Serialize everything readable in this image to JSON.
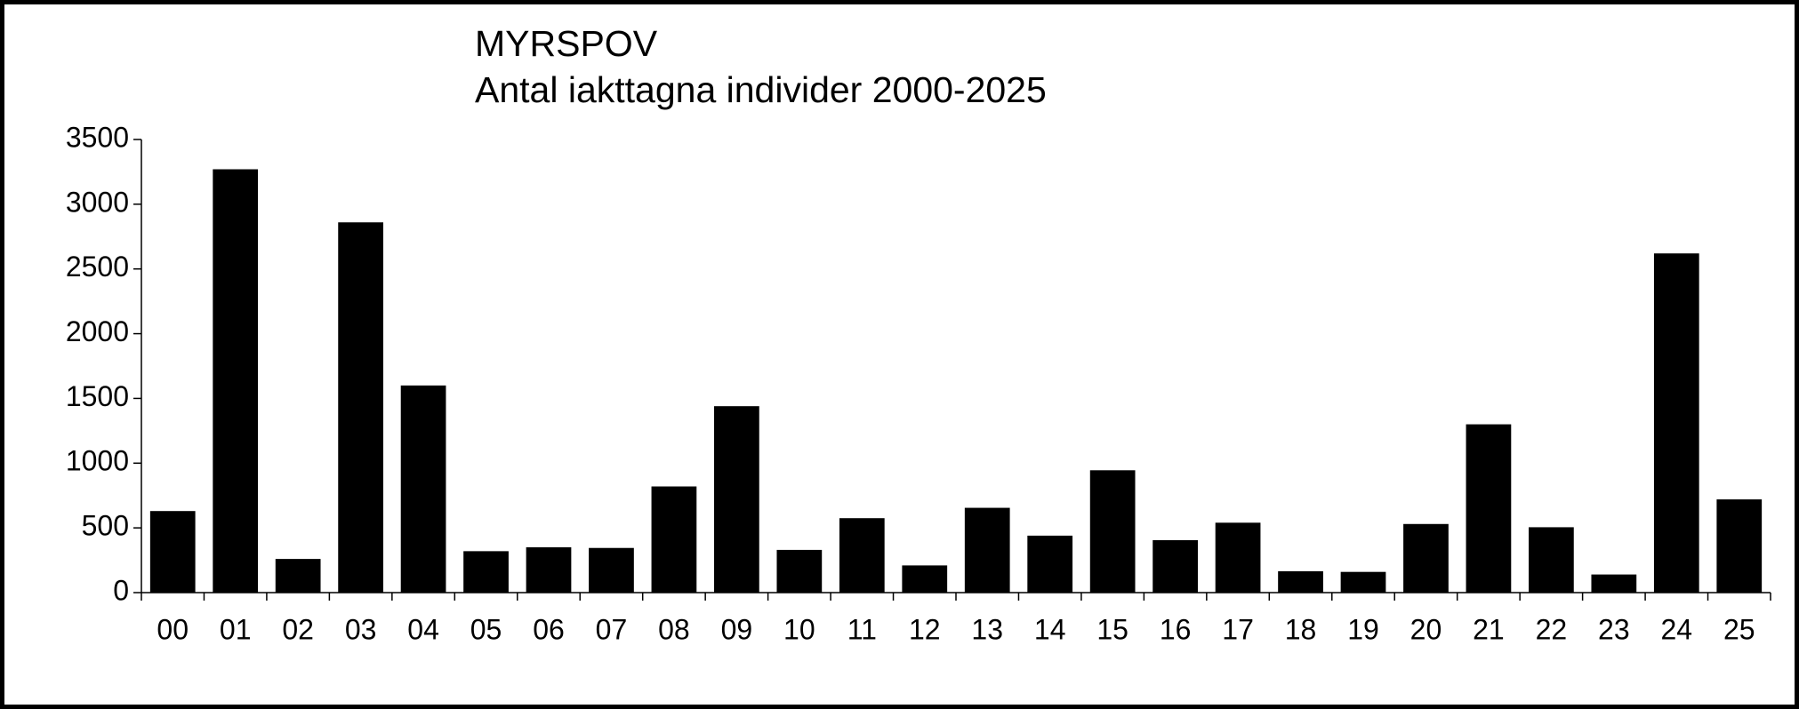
{
  "chart_data": {
    "type": "bar",
    "title": "MYRSPOV",
    "subtitle": "Antal iakttagna individer 2000-2025",
    "categories": [
      "00",
      "01",
      "02",
      "03",
      "04",
      "05",
      "06",
      "07",
      "08",
      "09",
      "10",
      "11",
      "12",
      "13",
      "14",
      "15",
      "16",
      "17",
      "18",
      "19",
      "20",
      "21",
      "22",
      "23",
      "24",
      "25"
    ],
    "values": [
      630,
      3270,
      260,
      2860,
      1600,
      320,
      350,
      345,
      820,
      1440,
      330,
      575,
      210,
      655,
      440,
      945,
      405,
      540,
      165,
      160,
      530,
      1300,
      505,
      140,
      2620,
      720
    ],
    "color": "#000000",
    "ylim": [
      0,
      3500
    ],
    "yticks": [
      0,
      500,
      1000,
      1500,
      2000,
      2500,
      3000,
      3500
    ],
    "grid": false
  }
}
